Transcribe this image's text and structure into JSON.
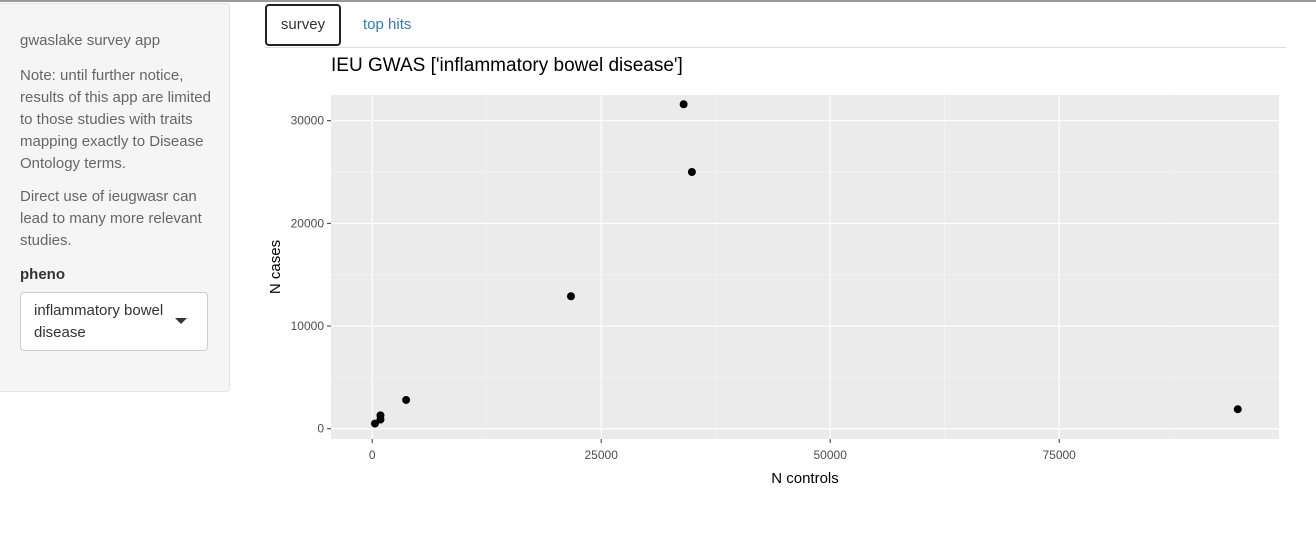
{
  "sidebar": {
    "app_title": "gwaslake survey app",
    "note": "Note: until further notice, results of this app are limited to those studies with traits mapping exactly to Disease Ontology terms.",
    "direct_use": "Direct use of ieugwasr can lead to many more relevant studies.",
    "pheno_label": "pheno",
    "pheno_selected": "inflammatory bowel disease"
  },
  "tabs": [
    {
      "label": "survey",
      "active": true
    },
    {
      "label": "top hits",
      "active": false
    }
  ],
  "chart_data": {
    "type": "scatter",
    "title": "IEU GWAS ['inflammatory bowel disease']",
    "xlabel": "N controls",
    "ylabel": "N cases",
    "xlim": [
      -4500,
      99000
    ],
    "ylim": [
      -1000,
      32500
    ],
    "xticks": [
      0,
      25000,
      50000,
      75000
    ],
    "xtick_labels": [
      "0",
      "25000",
      "50000",
      "75000"
    ],
    "yticks": [
      0,
      10000,
      20000,
      30000
    ],
    "ytick_labels": [
      "0",
      "10000",
      "20000",
      "30000"
    ],
    "grid": true,
    "panel_color": "#ebebeb",
    "point_color": "#000000",
    "points": [
      {
        "x": 300,
        "y": 500
      },
      {
        "x": 900,
        "y": 900
      },
      {
        "x": 900,
        "y": 1300
      },
      {
        "x": 3700,
        "y": 2800
      },
      {
        "x": 21700,
        "y": 12900
      },
      {
        "x": 34000,
        "y": 31600
      },
      {
        "x": 34900,
        "y": 25000
      },
      {
        "x": 94500,
        "y": 1900
      }
    ]
  }
}
